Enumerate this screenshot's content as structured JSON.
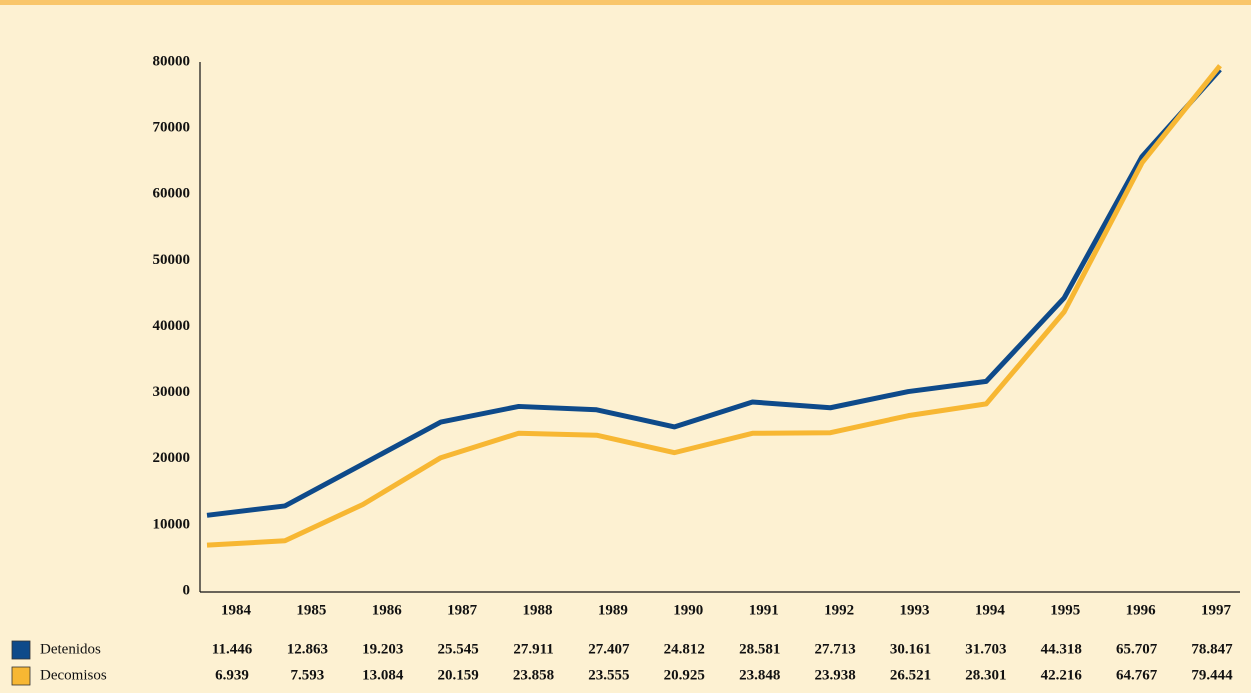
{
  "chart_data": {
    "type": "line",
    "categories": [
      "1984",
      "1985",
      "1986",
      "1987",
      "1988",
      "1989",
      "1990",
      "1991",
      "1992",
      "1993",
      "1994",
      "1995",
      "1996",
      "1997"
    ],
    "series": [
      {
        "name": "Detenidos",
        "color": "#0e4a8a",
        "values": [
          11446,
          12863,
          19203,
          25545,
          27911,
          27407,
          24812,
          28581,
          27713,
          30161,
          31703,
          44318,
          65707,
          78847
        ],
        "value_labels": [
          "11.446",
          "12.863",
          "19.203",
          "25.545",
          "27.911",
          "27.407",
          "24.812",
          "28.581",
          "27.713",
          "30.161",
          "31.703",
          "44.318",
          "65.707",
          "78.847"
        ]
      },
      {
        "name": "Decomisos",
        "color": "#f7b733",
        "values": [
          6939,
          7593,
          13084,
          20159,
          23858,
          23555,
          20925,
          23848,
          23938,
          26521,
          28301,
          42216,
          64767,
          79444
        ],
        "value_labels": [
          "6.939",
          "7.593",
          "13.084",
          "20.159",
          "23.858",
          "23.555",
          "20.925",
          "23.848",
          "23.938",
          "26.521",
          "28.301",
          "42.216",
          "64.767",
          "79.444"
        ]
      }
    ],
    "ylim": [
      0,
      80000
    ],
    "yticks": [
      0,
      10000,
      20000,
      30000,
      40000,
      50000,
      60000,
      70000,
      80000
    ],
    "grid": false
  }
}
